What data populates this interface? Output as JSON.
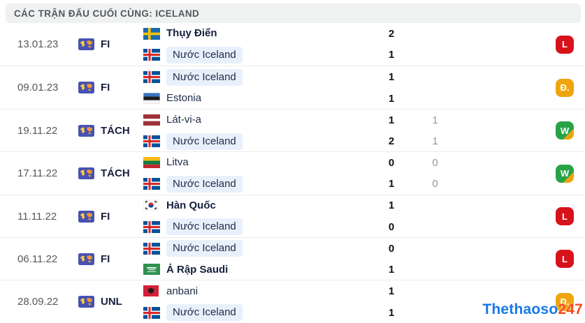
{
  "header": {
    "title": "CÁC TRẬN ĐẤU CUỐI CÙNG: ICELAND"
  },
  "watermark": {
    "part1": "Thethaoso",
    "part2": "247"
  },
  "colors": {
    "win": "#27a347",
    "win_corner": "#eaa50e",
    "loss": "#d7121b",
    "draw": "#eea50f",
    "iceland_highlight": "#e8f1fb",
    "header_bg": "#f0f1f1"
  },
  "icons": {
    "competition_icon": "world-map-icon",
    "flags_used": [
      "sweden",
      "iceland",
      "estonia",
      "latvia",
      "lithuania",
      "south-korea",
      "saudi-arabia",
      "albania"
    ]
  },
  "matches": [
    {
      "date": "13.01.23",
      "competition": "FI",
      "home": {
        "name": "Thụy Điển",
        "flag": "se",
        "bold": true,
        "highlight": false,
        "score": "2",
        "score2": ""
      },
      "away": {
        "name": "Nước Iceland",
        "flag": "is",
        "bold": false,
        "highlight": true,
        "score": "1",
        "score2": ""
      },
      "result": {
        "label": "L",
        "type": "loss"
      }
    },
    {
      "date": "09.01.23",
      "competition": "FI",
      "home": {
        "name": "Nước Iceland",
        "flag": "is",
        "bold": false,
        "highlight": true,
        "score": "1",
        "score2": ""
      },
      "away": {
        "name": "Estonia",
        "flag": "ee",
        "bold": false,
        "highlight": false,
        "score": "1",
        "score2": ""
      },
      "result": {
        "label": "Đ.",
        "type": "draw"
      }
    },
    {
      "date": "19.11.22",
      "competition": "TÁCH",
      "home": {
        "name": "Lát-vi-a",
        "flag": "lv",
        "bold": false,
        "highlight": false,
        "score": "1",
        "score2": "1"
      },
      "away": {
        "name": "Nước Iceland",
        "flag": "is",
        "bold": false,
        "highlight": true,
        "score": "2",
        "score2": "1"
      },
      "result": {
        "label": "W",
        "type": "win"
      }
    },
    {
      "date": "17.11.22",
      "competition": "TÁCH",
      "home": {
        "name": "Litva",
        "flag": "lt",
        "bold": false,
        "highlight": false,
        "score": "0",
        "score2": "0"
      },
      "away": {
        "name": "Nước Iceland",
        "flag": "is",
        "bold": false,
        "highlight": true,
        "score": "1",
        "score2": "0"
      },
      "result": {
        "label": "W",
        "type": "win"
      }
    },
    {
      "date": "11.11.22",
      "competition": "FI",
      "home": {
        "name": "Hàn Quốc",
        "flag": "kr",
        "bold": true,
        "highlight": false,
        "score": "1",
        "score2": ""
      },
      "away": {
        "name": "Nước Iceland",
        "flag": "is",
        "bold": false,
        "highlight": true,
        "score": "0",
        "score2": ""
      },
      "result": {
        "label": "L",
        "type": "loss"
      }
    },
    {
      "date": "06.11.22",
      "competition": "FI",
      "home": {
        "name": "Nước Iceland",
        "flag": "is",
        "bold": false,
        "highlight": true,
        "score": "0",
        "score2": ""
      },
      "away": {
        "name": "Ả Rập Saudi",
        "flag": "sa",
        "bold": true,
        "highlight": false,
        "score": "1",
        "score2": ""
      },
      "result": {
        "label": "L",
        "type": "loss"
      }
    },
    {
      "date": "28.09.22",
      "competition": "UNL",
      "home": {
        "name": "anbani",
        "flag": "al",
        "bold": false,
        "highlight": false,
        "score": "1",
        "score2": ""
      },
      "away": {
        "name": "Nước Iceland",
        "flag": "is",
        "bold": false,
        "highlight": true,
        "score": "1",
        "score2": ""
      },
      "result": {
        "label": "Đ.",
        "type": "draw"
      }
    }
  ]
}
